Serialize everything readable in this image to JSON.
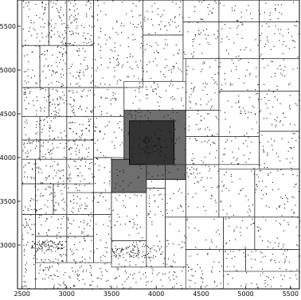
{
  "chart_data": {
    "type": "scatter",
    "title": "",
    "xlabel": "",
    "ylabel": "",
    "xlim": [
      2450,
      5600
    ],
    "ylim": [
      2500,
      5800
    ],
    "x_ticks": [
      2500,
      3000,
      3500,
      4000,
      4500,
      5000,
      5500
    ],
    "y_ticks": [
      3000,
      3500,
      4000,
      4500,
      5000,
      5500
    ],
    "x_tick_labels": [
      "2500",
      "3000",
      "3500",
      "4000",
      "4500",
      "5000",
      "5500"
    ],
    "y_tick_labels": [
      "3000",
      "3500",
      "4000",
      "4500",
      "5000",
      "5500"
    ],
    "grid": false,
    "point_color": "#111111",
    "partition_line_color": "#333333",
    "highlight_regions": [
      {
        "x0": 3640,
        "y0": 3750,
        "x1": 4330,
        "y1": 4540,
        "fill": "#6e6e6e"
      },
      {
        "x0": 3500,
        "y0": 3600,
        "x1": 3890,
        "y1": 3980,
        "fill": "#6e6e6e"
      },
      {
        "x0": 3700,
        "y0": 3920,
        "x1": 4200,
        "y1": 4420,
        "fill": "#333333"
      }
    ],
    "partition_cells": [
      [
        2500,
        5280,
        2800,
        5800
      ],
      [
        2800,
        5280,
        3000,
        5800
      ],
      [
        3000,
        5280,
        3300,
        5800
      ],
      [
        3300,
        4800,
        3850,
        5800
      ],
      [
        3850,
        5400,
        4300,
        5800
      ],
      [
        3850,
        4870,
        4300,
        5400
      ],
      [
        4300,
        5550,
        4700,
        5800
      ],
      [
        4700,
        5550,
        5150,
        5800
      ],
      [
        5150,
        5550,
        5600,
        5800
      ],
      [
        4300,
        5130,
        4700,
        5550
      ],
      [
        4700,
        5130,
        5150,
        5550
      ],
      [
        5150,
        5130,
        5600,
        5550
      ],
      [
        2500,
        4800,
        2700,
        5280
      ],
      [
        2700,
        4800,
        3000,
        5280
      ],
      [
        3000,
        4800,
        3300,
        5280
      ],
      [
        3300,
        4470,
        3640,
        4800
      ],
      [
        3640,
        4540,
        4330,
        4870
      ],
      [
        4330,
        4540,
        4700,
        5130
      ],
      [
        4700,
        4760,
        5150,
        5130
      ],
      [
        5150,
        4760,
        5600,
        5130
      ],
      [
        2500,
        4470,
        2800,
        4800
      ],
      [
        2800,
        4470,
        3000,
        4800
      ],
      [
        3000,
        4470,
        3300,
        4800
      ],
      [
        2500,
        4200,
        2700,
        4470
      ],
      [
        2700,
        4200,
        3000,
        4470
      ],
      [
        3000,
        4200,
        3300,
        4470
      ],
      [
        3300,
        4000,
        3640,
        4470
      ],
      [
        2500,
        3980,
        2700,
        4200
      ],
      [
        2700,
        3980,
        3000,
        4200
      ],
      [
        3000,
        3980,
        3300,
        4200
      ],
      [
        4330,
        4240,
        4700,
        4540
      ],
      [
        4700,
        4240,
        5150,
        4760
      ],
      [
        5150,
        4300,
        5600,
        4760
      ],
      [
        2500,
        3700,
        2650,
        3980
      ],
      [
        2650,
        3700,
        3000,
        3980
      ],
      [
        3000,
        3700,
        3300,
        3980
      ],
      [
        3300,
        3600,
        3500,
        4000
      ],
      [
        4330,
        3920,
        4700,
        4240
      ],
      [
        4700,
        3920,
        5150,
        4240
      ],
      [
        5150,
        3870,
        5600,
        4300
      ],
      [
        2500,
        3350,
        2650,
        3700
      ],
      [
        2650,
        3350,
        2850,
        3700
      ],
      [
        2850,
        3350,
        3000,
        3700
      ],
      [
        3000,
        3350,
        3300,
        3600
      ],
      [
        3300,
        3350,
        3500,
        3600
      ],
      [
        3500,
        3050,
        3890,
        3600
      ],
      [
        3890,
        3650,
        4100,
        3920
      ],
      [
        4100,
        3320,
        4330,
        3920
      ],
      [
        4330,
        3320,
        4700,
        3920
      ],
      [
        4700,
        3320,
        5100,
        3870
      ],
      [
        5100,
        3320,
        5600,
        3870
      ],
      [
        2500,
        2500,
        2650,
        3350
      ],
      [
        2650,
        3100,
        3000,
        3350
      ],
      [
        3000,
        3100,
        3300,
        3350
      ],
      [
        2650,
        2800,
        3000,
        3100
      ],
      [
        3000,
        2800,
        3300,
        3100
      ],
      [
        3300,
        2800,
        3500,
        3350
      ],
      [
        3500,
        2750,
        3890,
        3050
      ],
      [
        3890,
        2750,
        4100,
        3650
      ],
      [
        4100,
        2750,
        4330,
        3320
      ],
      [
        4330,
        2950,
        4750,
        3320
      ],
      [
        4750,
        2950,
        5100,
        3320
      ],
      [
        5100,
        2950,
        5600,
        3320
      ],
      [
        4330,
        2500,
        4750,
        2950
      ],
      [
        4750,
        2700,
        5000,
        2950
      ],
      [
        5000,
        2700,
        5600,
        2950
      ]
    ],
    "point_regions": [
      {
        "x0": 2500,
        "y0": 2500,
        "x1": 3300,
        "y1": 5800,
        "count": 1000,
        "seed": 11
      },
      {
        "x0": 3300,
        "y0": 2500,
        "x1": 4300,
        "y1": 5800,
        "count": 650,
        "seed": 23
      },
      {
        "x0": 4300,
        "y0": 2500,
        "x1": 5600,
        "y1": 5800,
        "count": 780,
        "seed": 37
      },
      {
        "x0": 2600,
        "y0": 2950,
        "x1": 2950,
        "y1": 3050,
        "count": 80,
        "seed": 41
      },
      {
        "x0": 3500,
        "y0": 2850,
        "x1": 4000,
        "y1": 3000,
        "count": 90,
        "seed": 53
      },
      {
        "x0": 3850,
        "y0": 4050,
        "x1": 4050,
        "y1": 4250,
        "count": 60,
        "seed": 67
      }
    ]
  }
}
